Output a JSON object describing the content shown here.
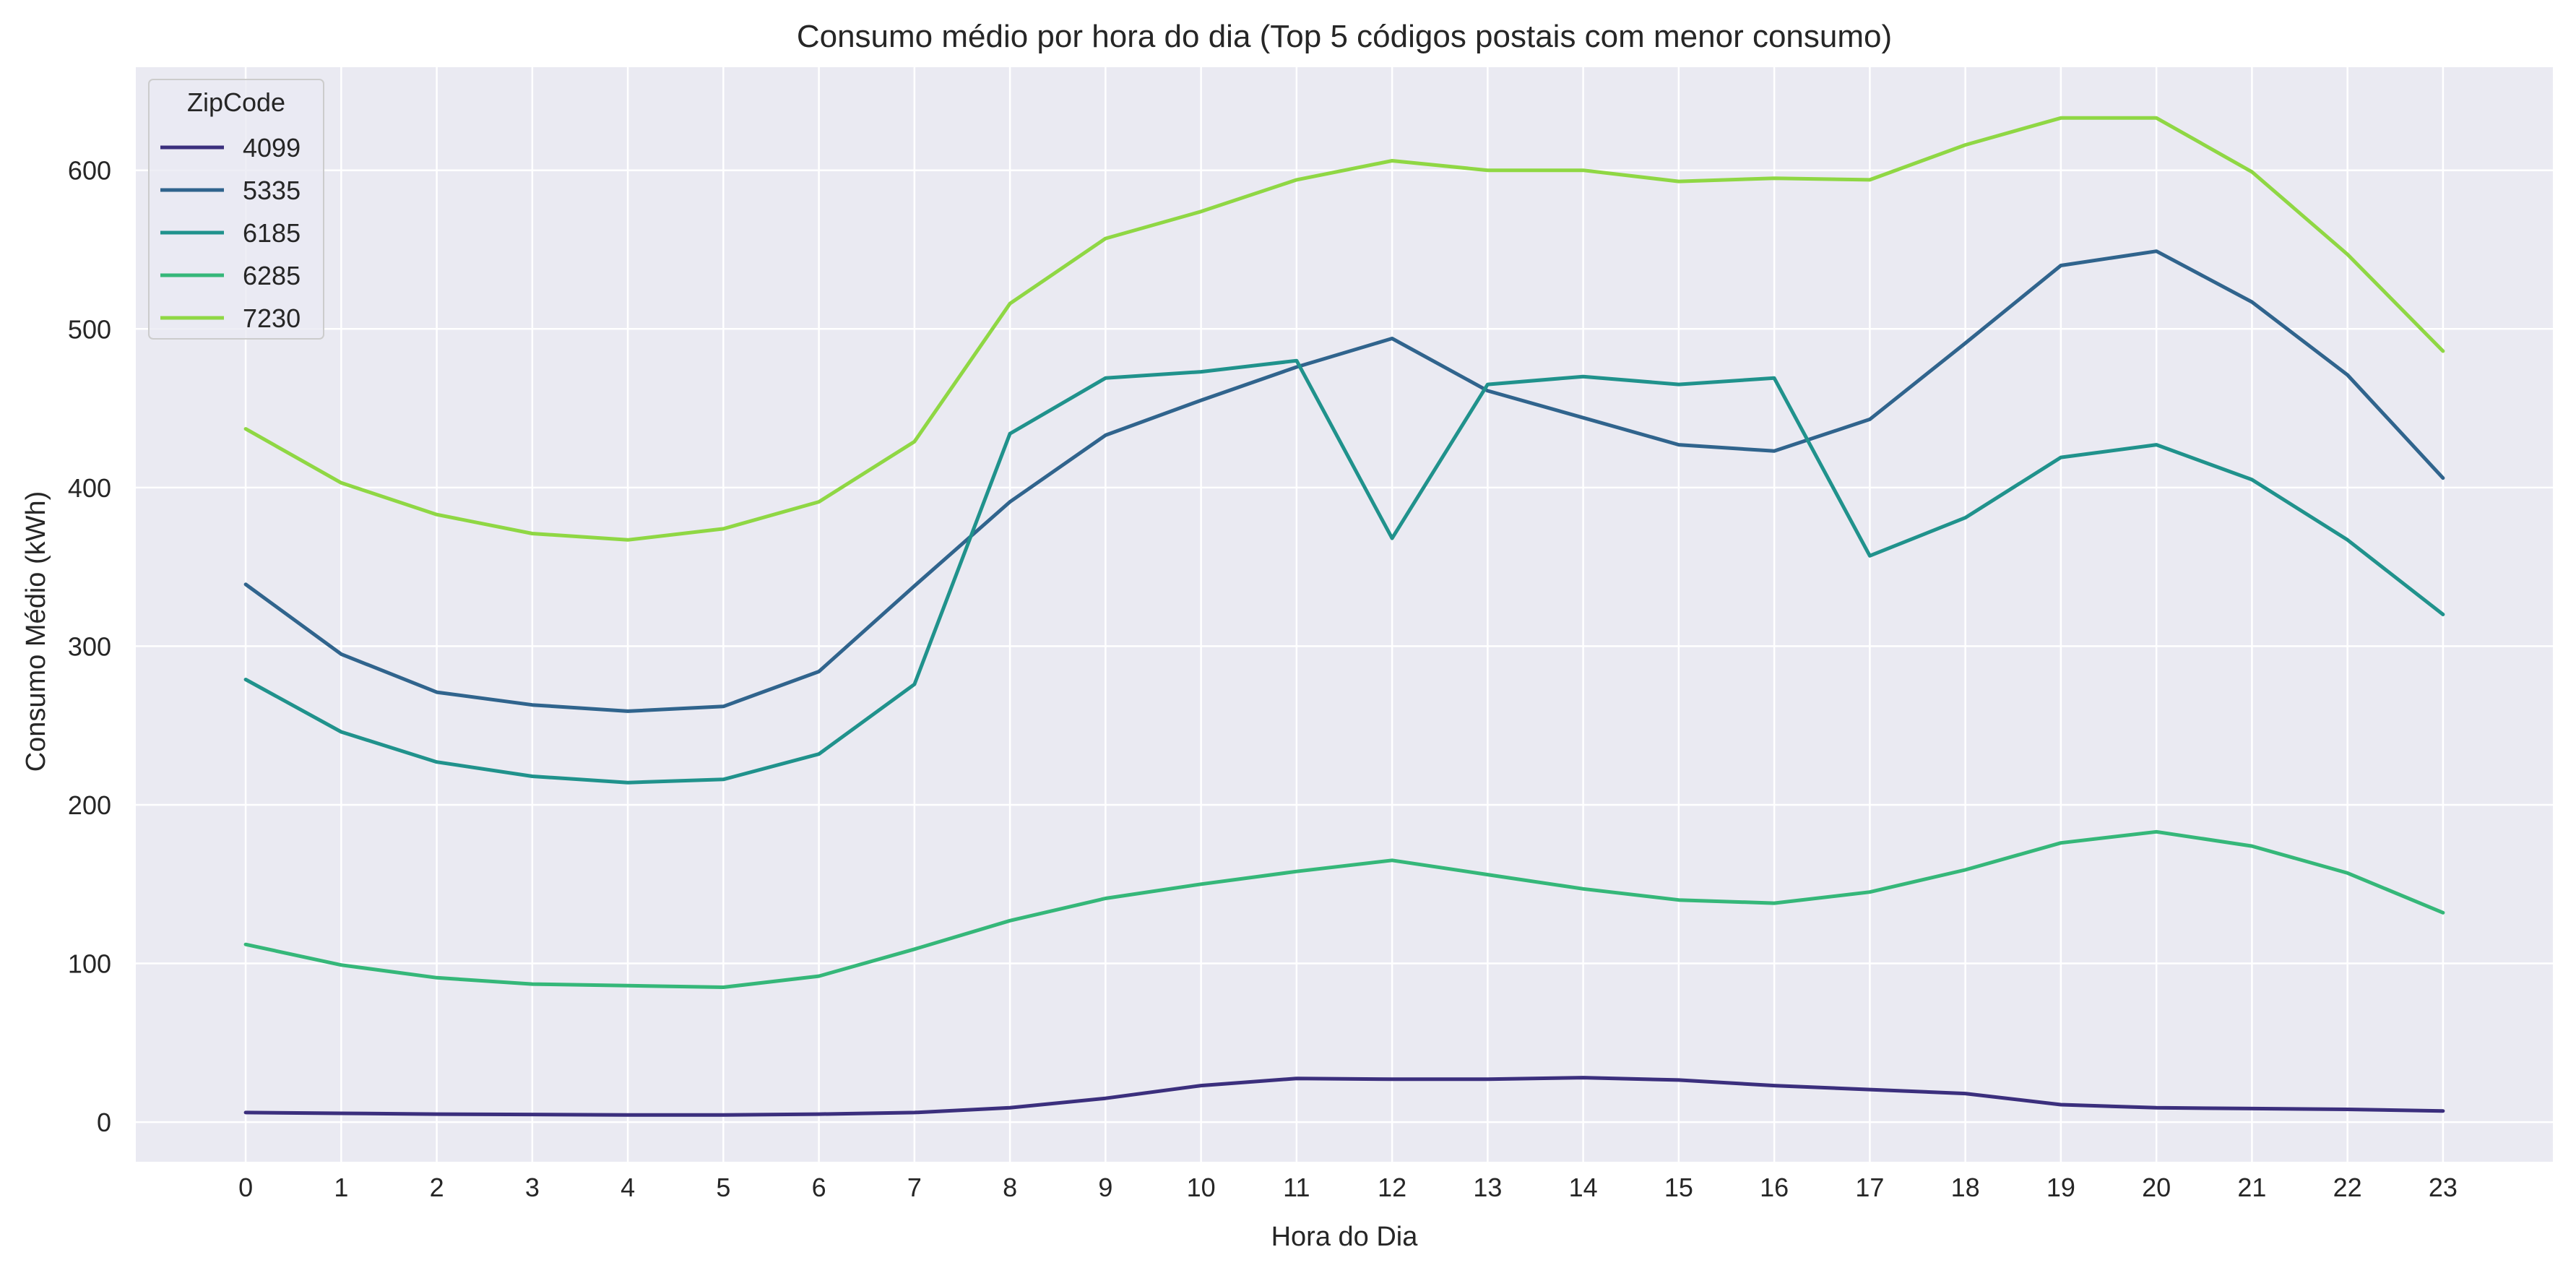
{
  "chart_data": {
    "type": "line",
    "title": "Consumo médio por hora do dia (Top 5 códigos postais com menor consumo)",
    "xlabel": "Hora do Dia",
    "ylabel": "Consumo Médio (kWh)",
    "x": [
      0,
      1,
      2,
      3,
      4,
      5,
      6,
      7,
      8,
      9,
      10,
      11,
      12,
      13,
      14,
      15,
      16,
      17,
      18,
      19,
      20,
      21,
      22,
      23
    ],
    "xlim": [
      -1.15,
      24.15
    ],
    "ylim": [
      -25,
      665
    ],
    "yticks": [
      0,
      100,
      200,
      300,
      400,
      500,
      600
    ],
    "grid": true,
    "legend": {
      "title": "ZipCode",
      "placement": "top-left"
    },
    "series": [
      {
        "name": "4099",
        "color": "#3b2f7d",
        "values": [
          6,
          5.5,
          5,
          4.8,
          4.5,
          4.5,
          5,
          6,
          9,
          15,
          23,
          27.5,
          27,
          27,
          28,
          26.5,
          23,
          20.5,
          18,
          11,
          9,
          8.5,
          8,
          7
        ]
      },
      {
        "name": "5335",
        "color": "#30648d",
        "values": [
          339,
          295,
          271,
          263,
          259,
          262,
          284,
          338,
          391,
          433,
          455,
          476,
          494,
          461,
          444,
          427,
          423,
          443,
          491,
          540,
          549,
          517,
          471,
          406
        ]
      },
      {
        "name": "6185",
        "color": "#20928c",
        "values": [
          279,
          246,
          227,
          218,
          214,
          216,
          232,
          276,
          434,
          469,
          473,
          480,
          368,
          465,
          470,
          465,
          469,
          357,
          381,
          419,
          427,
          405,
          367,
          320
        ]
      },
      {
        "name": "6285",
        "color": "#35b779",
        "values": [
          112,
          99,
          91,
          87,
          86,
          85,
          92,
          109,
          127,
          141,
          150,
          158,
          165,
          156,
          147,
          140,
          138,
          145,
          159,
          176,
          183,
          174,
          157,
          132
        ]
      },
      {
        "name": "7230",
        "color": "#8fd744",
        "values": [
          437,
          403,
          383,
          371,
          367,
          374,
          391,
          429,
          516,
          557,
          574,
          594,
          606,
          600,
          600,
          593,
          595,
          594,
          616,
          633,
          633,
          599,
          547,
          486
        ]
      }
    ]
  }
}
